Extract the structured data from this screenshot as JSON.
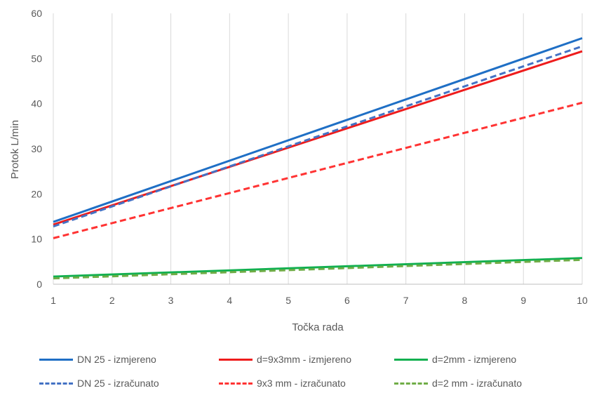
{
  "chart_data": {
    "type": "line",
    "xlabel": "Točka rada",
    "ylabel": "Protok   L/min",
    "xlim": [
      1,
      10
    ],
    "ylim": [
      0,
      60
    ],
    "x_ticks": [
      1,
      2,
      3,
      4,
      5,
      6,
      7,
      8,
      9,
      10
    ],
    "y_ticks": [
      0,
      10,
      20,
      30,
      40,
      50,
      60
    ],
    "grid": "vertical",
    "legend_position": "bottom",
    "series": [
      {
        "name": "DN 25 - izmjereno",
        "color": "#1f6fc5",
        "dash": "solid",
        "x": [
          1,
          10
        ],
        "y": [
          13.8,
          54.5
        ]
      },
      {
        "name": "d=9x3mm - izmjereno",
        "color": "#ee1c1c",
        "dash": "solid",
        "x": [
          1,
          10
        ],
        "y": [
          13.2,
          51.6
        ]
      },
      {
        "name": "d=2mm - izmjereno",
        "color": "#12b050",
        "dash": "solid",
        "x": [
          1,
          10
        ],
        "y": [
          1.7,
          5.8
        ]
      },
      {
        "name": "DN 25 - izračunato",
        "color": "#4472c4",
        "dash": "dashed",
        "x": [
          1,
          10
        ],
        "y": [
          12.8,
          52.7
        ]
      },
      {
        "name": "9x3 mm - izračunato",
        "color": "#ff3333",
        "dash": "dashed",
        "x": [
          1,
          10
        ],
        "y": [
          10.2,
          40.2
        ]
      },
      {
        "name": "d=2 mm - izračunato",
        "color": "#70ad47",
        "dash": "dashed",
        "x": [
          1,
          10
        ],
        "y": [
          1.3,
          5.4
        ]
      }
    ]
  }
}
